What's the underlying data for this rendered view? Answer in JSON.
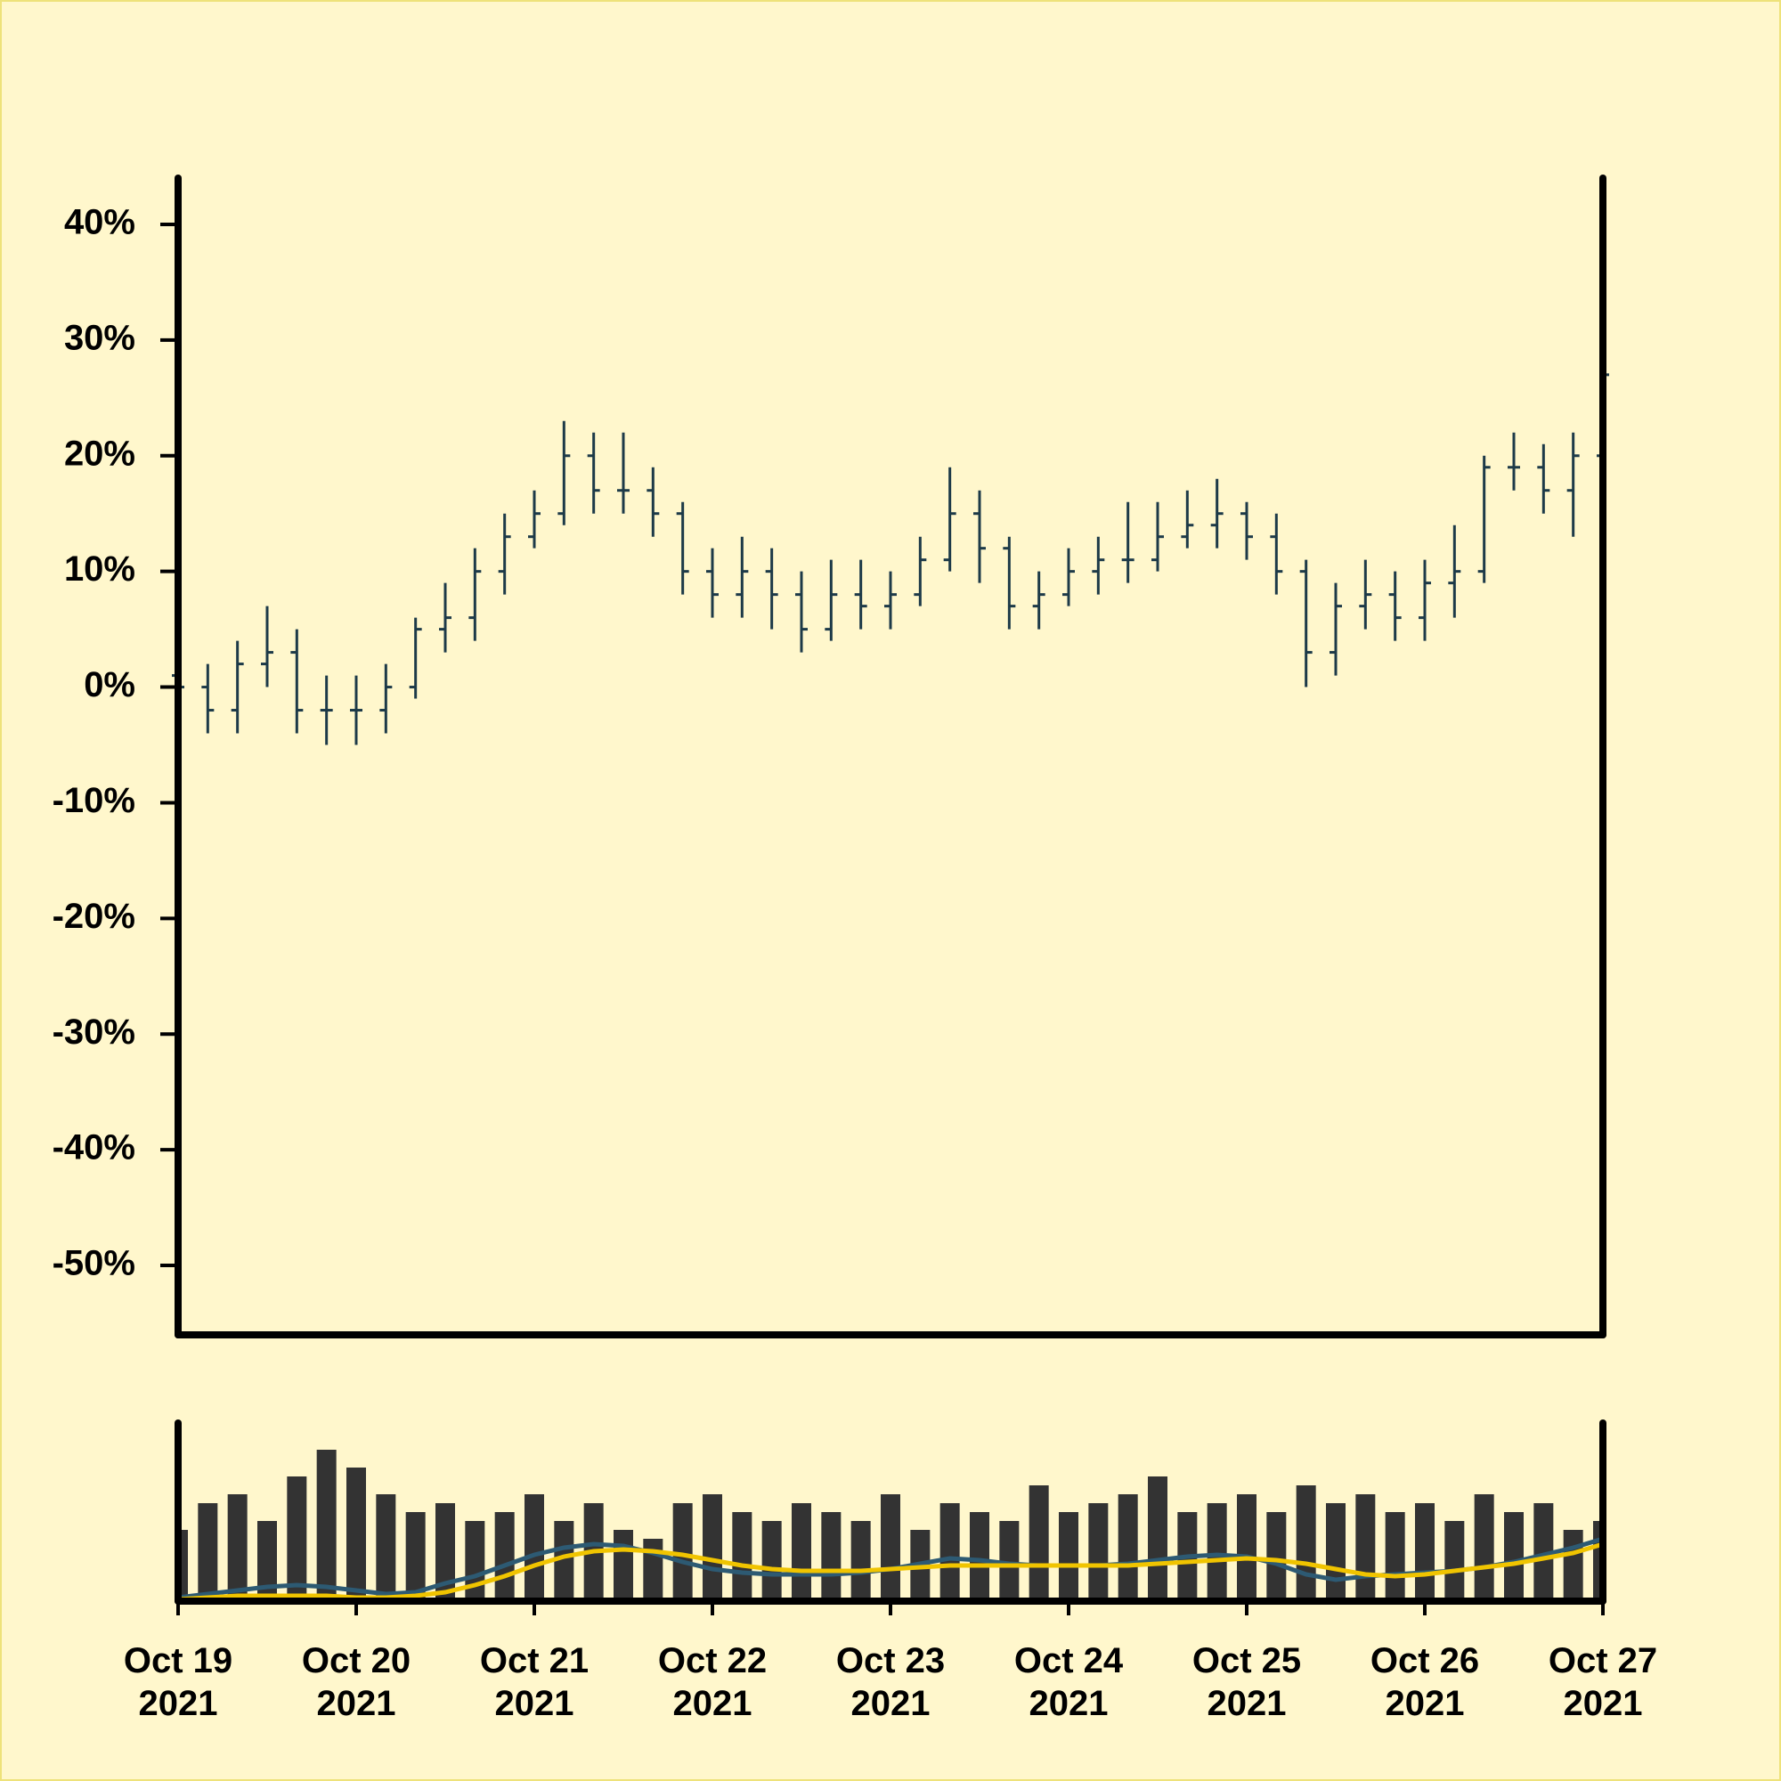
{
  "chart_data": {
    "type": "ohlc",
    "categories": [
      "Oct 19 2021",
      null,
      null,
      null,
      null,
      null,
      "Oct 20 2021",
      null,
      null,
      null,
      null,
      null,
      "Oct 21 2021",
      null,
      null,
      null,
      null,
      null,
      "Oct 22 2021",
      null,
      null,
      null,
      null,
      null,
      "Oct 23 2021",
      null,
      null,
      null,
      null,
      null,
      "Oct 24 2021",
      null,
      null,
      null,
      null,
      null,
      "Oct 25 2021",
      null,
      null,
      null,
      null,
      null,
      "Oct 26 2021",
      null,
      null,
      null,
      null,
      null,
      "Oct 27 2021"
    ],
    "open": [
      1,
      0,
      -2,
      2,
      3,
      -2,
      -2,
      -2,
      0,
      5,
      6,
      10,
      13,
      15,
      20,
      17,
      17,
      15,
      10,
      8,
      10,
      8,
      5,
      8,
      7,
      8,
      11,
      15,
      12,
      7,
      8,
      10,
      11,
      11,
      13,
      14,
      15,
      13,
      10,
      3,
      7,
      8,
      6,
      9,
      10,
      19,
      19,
      17,
      20
    ],
    "high": [
      3,
      2,
      4,
      7,
      5,
      1,
      1,
      2,
      6,
      9,
      12,
      15,
      17,
      23,
      22,
      22,
      19,
      16,
      12,
      13,
      12,
      10,
      11,
      11,
      10,
      13,
      19,
      17,
      13,
      10,
      12,
      13,
      16,
      16,
      17,
      18,
      16,
      15,
      11,
      9,
      11,
      10,
      11,
      14,
      20,
      22,
      21,
      22,
      28
    ],
    "low": [
      -2,
      -4,
      -4,
      0,
      -4,
      -5,
      -5,
      -4,
      -1,
      3,
      4,
      8,
      12,
      14,
      15,
      15,
      13,
      8,
      6,
      6,
      5,
      3,
      4,
      5,
      5,
      7,
      10,
      9,
      5,
      5,
      7,
      8,
      9,
      10,
      12,
      12,
      11,
      8,
      0,
      1,
      5,
      4,
      4,
      6,
      9,
      17,
      15,
      13,
      20
    ],
    "close": [
      0,
      -2,
      2,
      3,
      -2,
      -2,
      -2,
      0,
      5,
      6,
      10,
      13,
      15,
      20,
      17,
      17,
      15,
      10,
      8,
      10,
      8,
      5,
      8,
      7,
      8,
      11,
      15,
      12,
      7,
      8,
      10,
      11,
      11,
      13,
      14,
      15,
      13,
      10,
      3,
      7,
      8,
      6,
      9,
      10,
      19,
      19,
      17,
      20,
      27
    ],
    "color": "#1d3a48",
    "ylim": [
      -56,
      44
    ],
    "yticks": [
      {
        "value": -50,
        "label": "-50%"
      },
      {
        "value": -40,
        "label": "-40%"
      },
      {
        "value": -30,
        "label": "-30%"
      },
      {
        "value": -20,
        "label": "-20%"
      },
      {
        "value": -10,
        "label": "-10%"
      },
      {
        "value": 0,
        "label": "0%"
      },
      {
        "value": 10,
        "label": "10%"
      },
      {
        "value": 20,
        "label": "20%"
      },
      {
        "value": 30,
        "label": "30%"
      },
      {
        "value": 40,
        "label": "40%"
      }
    ],
    "volume": {
      "values": [
        40,
        55,
        60,
        45,
        70,
        85,
        75,
        60,
        50,
        55,
        45,
        50,
        60,
        45,
        55,
        40,
        35,
        55,
        60,
        50,
        45,
        55,
        50,
        45,
        60,
        40,
        55,
        50,
        45,
        65,
        50,
        55,
        60,
        70,
        50,
        55,
        60,
        50,
        65,
        55,
        60,
        50,
        55,
        45,
        60,
        50,
        55,
        40,
        45
      ],
      "color": "#333333",
      "ylim": [
        0,
        100
      ],
      "series": [
        {
          "color": "#2d5a73",
          "values": [
            2,
            4,
            6,
            8,
            9,
            8,
            6,
            4,
            5,
            10,
            14,
            20,
            26,
            30,
            32,
            31,
            27,
            22,
            18,
            16,
            15,
            15,
            15,
            16,
            18,
            21,
            24,
            23,
            21,
            20,
            20,
            20,
            21,
            23,
            25,
            26,
            25,
            21,
            15,
            12,
            14,
            15,
            16,
            17,
            19,
            22,
            26,
            30,
            35
          ]
        },
        {
          "color": "#f0c400",
          "values": [
            1,
            2,
            3,
            3,
            3,
            3,
            2,
            2,
            3,
            5,
            9,
            14,
            20,
            25,
            28,
            29,
            28,
            26,
            23,
            20,
            18,
            17,
            17,
            17,
            18,
            19,
            20,
            20,
            20,
            20,
            20,
            20,
            20,
            21,
            22,
            23,
            24,
            23,
            21,
            18,
            15,
            14,
            15,
            17,
            19,
            21,
            24,
            27,
            32
          ]
        }
      ]
    }
  }
}
